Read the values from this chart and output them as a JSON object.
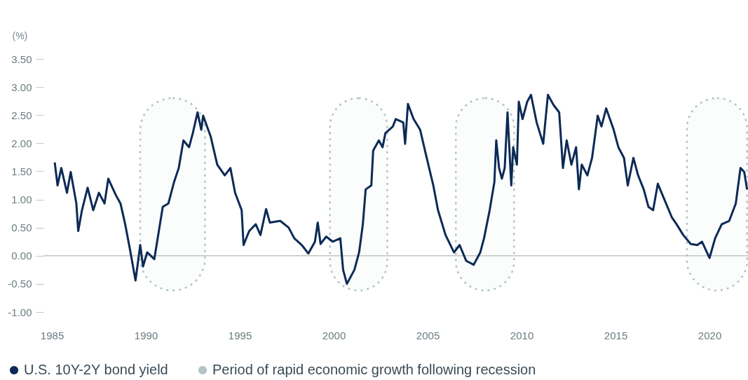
{
  "chart_data": {
    "type": "line",
    "ylabel": "(%)",
    "x": [
      1985.15,
      1985.3,
      1985.5,
      1985.8,
      1986.0,
      1986.3,
      1986.4,
      1986.6,
      1986.9,
      1987.2,
      1987.5,
      1987.8,
      1988.0,
      1988.4,
      1988.65,
      1988.9,
      1989.15,
      1989.45,
      1989.7,
      1989.85,
      1990.07,
      1990.45,
      1990.6,
      1990.9,
      1991.2,
      1991.5,
      1991.75,
      1992.0,
      1992.3,
      1992.5,
      1992.75,
      1992.95,
      1993.05,
      1993.45,
      1993.8,
      1994.2,
      1994.5,
      1994.75,
      1995.1,
      1995.2,
      1995.5,
      1995.85,
      1996.1,
      1996.4,
      1996.6,
      1997.15,
      1997.6,
      1997.9,
      1998.3,
      1998.65,
      1999.0,
      1999.15,
      1999.3,
      1999.6,
      1999.95,
      2000.35,
      2000.5,
      2000.7,
      2001.1,
      2001.35,
      2001.55,
      2001.7,
      2002.0,
      2002.1,
      2002.4,
      2002.6,
      2002.75,
      2003.15,
      2003.3,
      2003.7,
      2003.8,
      2003.95,
      2004.25,
      2004.6,
      2004.9,
      2005.3,
      2005.55,
      2005.95,
      2006.4,
      2006.7,
      2007.05,
      2007.45,
      2007.8,
      2008.0,
      2008.3,
      2008.55,
      2008.65,
      2008.8,
      2008.95,
      2009.1,
      2009.25,
      2009.45,
      2009.55,
      2009.75,
      2009.85,
      2010.05,
      2010.3,
      2010.5,
      2010.8,
      2011.15,
      2011.4,
      2011.7,
      2012.0,
      2012.2,
      2012.4,
      2012.65,
      2012.9,
      2013.05,
      2013.2,
      2013.5,
      2013.75,
      2014.05,
      2014.25,
      2014.5,
      2014.9,
      2015.15,
      2015.45,
      2015.65,
      2015.95,
      2016.2,
      2016.5,
      2016.75,
      2017.0,
      2017.25,
      2017.6,
      2018.0,
      2018.25,
      2018.6,
      2019.0,
      2019.35,
      2019.6,
      2020.0,
      2020.3,
      2020.65,
      2021.05,
      2021.4,
      2021.65,
      2021.85,
      2022.0
    ],
    "series": [
      {
        "name": "U.S. 10Y-2Y bond yield",
        "color": "#0b2a56",
        "values": [
          1.66,
          1.25,
          1.56,
          1.12,
          1.49,
          0.93,
          0.44,
          0.81,
          1.21,
          0.81,
          1.12,
          0.93,
          1.37,
          1.08,
          0.93,
          0.56,
          0.12,
          -0.44,
          0.19,
          -0.19,
          0.06,
          -0.06,
          0.25,
          0.87,
          0.93,
          1.31,
          1.56,
          2.05,
          1.93,
          2.18,
          2.55,
          2.24,
          2.49,
          2.12,
          1.62,
          1.43,
          1.56,
          1.12,
          0.81,
          0.19,
          0.44,
          0.56,
          0.37,
          0.83,
          0.59,
          0.62,
          0.5,
          0.31,
          0.19,
          0.04,
          0.25,
          0.59,
          0.21,
          0.34,
          0.25,
          0.31,
          -0.25,
          -0.5,
          -0.25,
          0.06,
          0.56,
          1.18,
          1.25,
          1.87,
          2.05,
          1.93,
          2.18,
          2.3,
          2.43,
          2.37,
          1.99,
          2.7,
          2.43,
          2.24,
          1.81,
          1.25,
          0.81,
          0.37,
          0.06,
          0.19,
          -0.09,
          -0.16,
          0.06,
          0.31,
          0.81,
          1.31,
          2.05,
          1.56,
          1.37,
          1.56,
          2.55,
          1.25,
          1.93,
          1.62,
          2.74,
          2.43,
          2.74,
          2.86,
          2.37,
          1.99,
          2.86,
          2.68,
          2.55,
          1.56,
          2.05,
          1.62,
          1.93,
          1.18,
          1.62,
          1.43,
          1.74,
          2.49,
          2.3,
          2.62,
          2.24,
          1.93,
          1.74,
          1.25,
          1.74,
          1.43,
          1.18,
          0.87,
          0.81,
          1.28,
          1.0,
          0.68,
          0.56,
          0.37,
          0.21,
          0.19,
          0.25,
          -0.04,
          0.31,
          0.56,
          0.62,
          0.93,
          1.56,
          1.49,
          1.18
        ]
      }
    ],
    "xlim": [
      1984.55,
      2022.05
    ],
    "xticks": [
      1985,
      1990,
      1995,
      2000,
      2005,
      2010,
      2015,
      2020
    ],
    "ylim": [
      -1,
      3.5
    ],
    "yticks": [
      {
        "value": -1,
        "label": "-1.00"
      },
      {
        "value": -0.5,
        "label": "-0.50"
      },
      {
        "value": 0,
        "label": "0.00"
      },
      {
        "value": 0.5,
        "label": "0.50"
      },
      {
        "value": 1,
        "label": "1.00"
      },
      {
        "value": 1.5,
        "label": "1.50"
      },
      {
        "value": 2,
        "label": "2.00"
      },
      {
        "value": 2.5,
        "label": "2.50"
      },
      {
        "value": 3,
        "label": "3.00"
      },
      {
        "value": 3.5,
        "label": "3.50"
      }
    ],
    "ref_lines": [
      {
        "axis": "y",
        "value": 0,
        "color": "#c4c4c4"
      }
    ],
    "bands": [
      {
        "axis": "x",
        "from": 1989.7,
        "to": 1993.15,
        "label": "Period of rapid economic growth following recession",
        "color": "#b3c4c6"
      },
      {
        "axis": "x",
        "from": 1999.8,
        "to": 2002.85,
        "color": "#b3c4c6"
      },
      {
        "axis": "x",
        "from": 2006.5,
        "to": 2009.6,
        "color": "#b3c4c6"
      },
      {
        "axis": "x",
        "from": 2018.8,
        "to": 2022.0,
        "color": "#b3c4c6"
      }
    ],
    "legend": "bottom",
    "grid": false
  }
}
